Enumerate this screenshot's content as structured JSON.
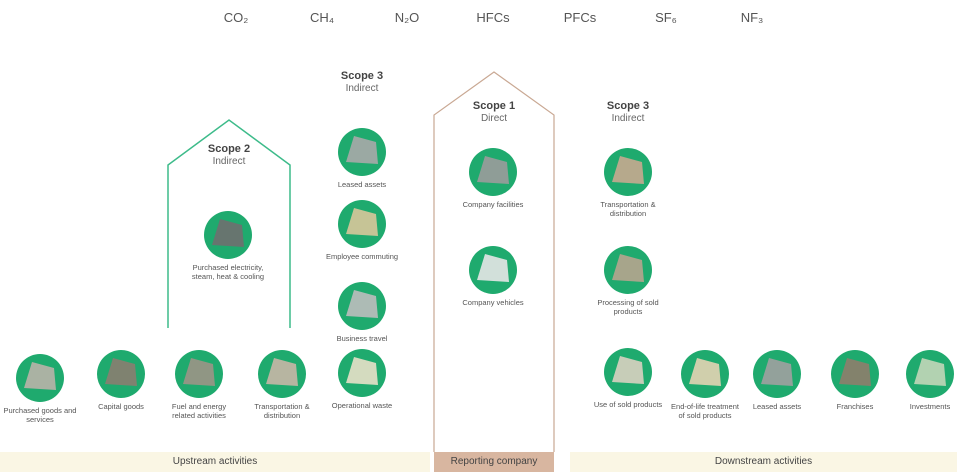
{
  "gases": [
    "CO₂",
    "CH₄",
    "N₂O",
    "HFCs",
    "PFCs",
    "SF₆",
    "NF₃"
  ],
  "scopes": [
    {
      "title": "Scope 2",
      "subtitle": "Indirect"
    },
    {
      "title": "Scope 3",
      "subtitle": "Indirect"
    },
    {
      "title": "Scope 1",
      "subtitle": "Direct"
    },
    {
      "title": "Scope 3",
      "subtitle": "Indirect"
    }
  ],
  "items": [
    "Purchased goods and services",
    "Capital goods",
    "Fuel and energy related activities",
    "Transportation & distribution",
    "Purchased electricity, steam, heat & cooling",
    "Leased assets",
    "Employee commuting",
    "Business travel",
    "Operational waste",
    "Company facilities",
    "Company vehicles",
    "Transportation & distribution",
    "Processing of sold products",
    "Use of sold products",
    "End-of-life treatment of sold products",
    "Leased assets",
    "Franchises",
    "Investments"
  ],
  "sections": [
    "Upstream activities",
    "Reporting company",
    "Downstream activities"
  ]
}
